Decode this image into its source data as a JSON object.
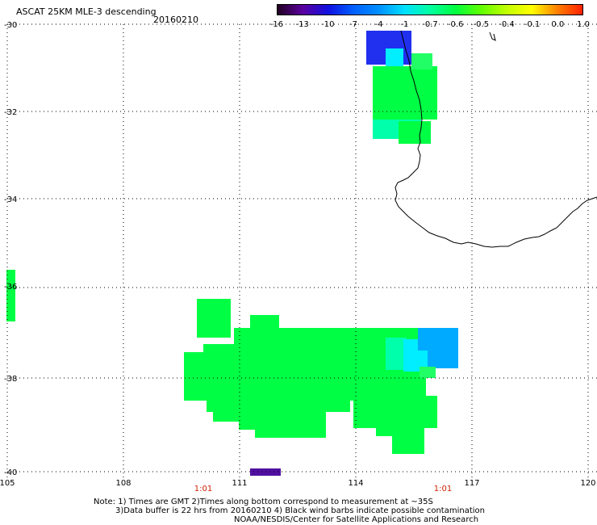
{
  "title": {
    "product": "ASCAT 25KM MLE-3 descending",
    "date": "20160210"
  },
  "colorbar": {
    "labels": [
      "-16",
      "-13",
      "-10",
      "-7",
      "-4",
      "-1",
      "-0.7",
      "-0.6",
      "-0.5",
      "-0.4",
      "-0.1",
      "0.0",
      "1.0"
    ],
    "colors": [
      "#220020",
      "#5a00a0",
      "#1010e0",
      "#0060ff",
      "#0090ff",
      "#00e0ff",
      "#00ffa0",
      "#00ff40",
      "#60ff00",
      "#c0ff00",
      "#ffff00",
      "#ff8000",
      "#ff2000"
    ]
  },
  "axes": {
    "lat_labels": [
      "-30",
      "-32",
      "-34",
      "-36",
      "-38",
      "-40"
    ],
    "lon_labels": [
      "105",
      "108",
      "111",
      "114",
      "117",
      "120"
    ],
    "time_labels": [
      "1:01",
      "1:01"
    ]
  },
  "notes": {
    "line1": "Note: 1) Times are GMT 2)Times along bottom correspond to measurement at ~35S",
    "line2": "3)Data buffer is 22 hrs from 20160210 4) Black wind barbs indicate possible contamination",
    "line3": "NOAA/NESDIS/Center for Satellite Applications and Research"
  },
  "map_data": {
    "lat_range": [
      -40,
      -30
    ],
    "lon_range": [
      105,
      120
    ],
    "swath_colors": {
      "green": "#00ff44",
      "light_green": "#22ff66",
      "teal": "#00ffaa",
      "cyan": "#00eeff",
      "sky": "#00aaff",
      "blue": "#0066ff",
      "dark_blue": "#2030ee",
      "purple": "#5010a0"
    }
  }
}
